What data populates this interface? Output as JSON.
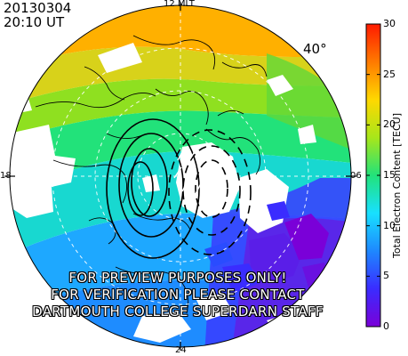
{
  "header": {
    "date": "20130304",
    "time": "20:10 UT"
  },
  "map": {
    "mlt_labels": {
      "top": "12 MLT",
      "bottom": "24",
      "left": "18",
      "right": "06"
    },
    "latitude_label": "40°",
    "watermark": [
      "FOR PREVIEW PURPOSES ONLY!",
      "FOR VERIFICATION PLEASE CONTACT",
      "DARTMOUTH COLLEGE SUPERDARN STAFF"
    ]
  },
  "colorbar": {
    "title": "Total Electron Content [TECU]",
    "min": 0,
    "max": 30,
    "ticks": [
      "0",
      "5",
      "10",
      "15",
      "20",
      "25",
      "30"
    ],
    "colors": [
      "#7a00d8",
      "#3a2cff",
      "#1e88ff",
      "#18e0ff",
      "#22e27a",
      "#a8e61a",
      "#ffd800",
      "#ff7a00",
      "#ff1a00"
    ]
  }
}
